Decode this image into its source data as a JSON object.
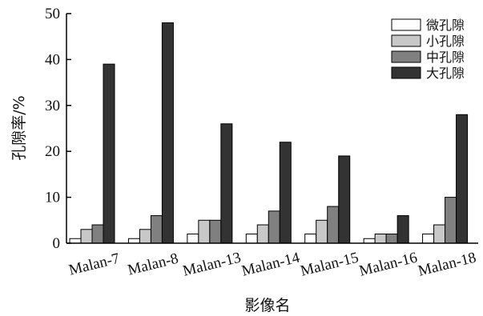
{
  "chart_data": {
    "type": "bar",
    "title": "",
    "xlabel": "影像名",
    "ylabel": "孔隙率/%",
    "ylim": [
      0,
      50
    ],
    "yticks": [
      0,
      10,
      20,
      30,
      40,
      50
    ],
    "grid": false,
    "legend_position": "top-right",
    "categories": [
      "Malan-7",
      "Malan-8",
      "Malan-13",
      "Malan-14",
      "Malan-15",
      "Malan-16",
      "Malan-18"
    ],
    "series": [
      {
        "name": "微孔隙",
        "color": "#ffffff",
        "values": [
          1,
          1,
          2,
          2,
          2,
          1,
          2
        ]
      },
      {
        "name": "小孔隙",
        "color": "#c8c8c8",
        "values": [
          3,
          3,
          5,
          4,
          5,
          2,
          4
        ]
      },
      {
        "name": "中孔隙",
        "color": "#808080",
        "values": [
          4,
          6,
          5,
          7,
          8,
          2,
          10
        ]
      },
      {
        "name": "大孔隙",
        "color": "#333333",
        "values": [
          39,
          48,
          26,
          22,
          19,
          6,
          28
        ]
      }
    ]
  }
}
